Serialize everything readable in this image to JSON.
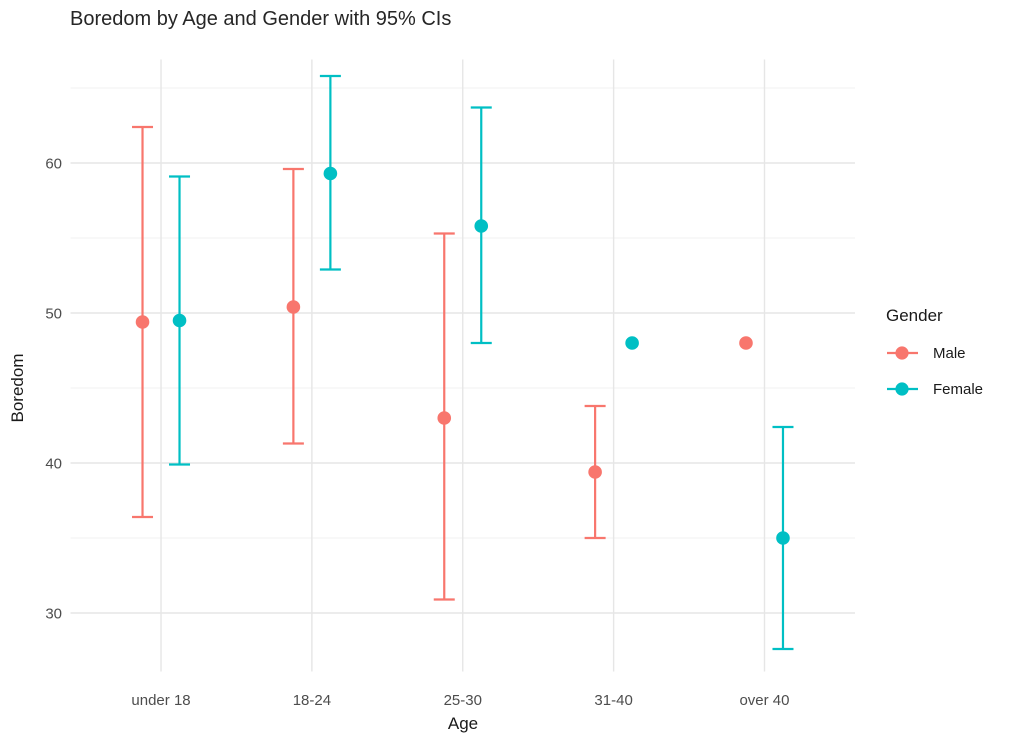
{
  "chart": {
    "title": "Boredom by Age and Gender with 95% CIs"
  },
  "chart_data": {
    "type": "scatter",
    "subtype": "point-with-95ci-errorbars",
    "title": "Boredom by Age and Gender with 95% CIs",
    "xlabel": "Age",
    "ylabel": "Boredom",
    "categories": [
      "under 18",
      "18-24",
      "25-30",
      "31-40",
      "over 40"
    ],
    "y_ticks": [
      30,
      40,
      50,
      60
    ],
    "y_minor_ticks": [
      35,
      45,
      55,
      65
    ],
    "ylim": [
      26.1,
      66.9
    ],
    "grid": true,
    "legend": {
      "title": "Gender",
      "position": "right"
    },
    "series": [
      {
        "name": "Male",
        "color": "#F8766D",
        "means": [
          49.4,
          50.4,
          43.0,
          39.4,
          48.0
        ],
        "ci_low": [
          36.4,
          41.3,
          30.9,
          35.0,
          null
        ],
        "ci_high": [
          62.4,
          59.6,
          55.3,
          43.8,
          null
        ]
      },
      {
        "name": "Female",
        "color": "#00BFC4",
        "means": [
          49.5,
          59.3,
          55.8,
          48.0,
          35.0
        ],
        "ci_low": [
          39.9,
          52.9,
          48.0,
          null,
          27.6
        ],
        "ci_high": [
          59.1,
          65.8,
          63.7,
          null,
          42.4
        ]
      }
    ]
  },
  "colors": {
    "background": "#FFFFFF",
    "grid_major": "#E6E6E6",
    "grid_minor": "#F1F1F1",
    "tick_label": "#4D4D4D",
    "axis_title": "#1A1A1A",
    "title": "#262626"
  }
}
